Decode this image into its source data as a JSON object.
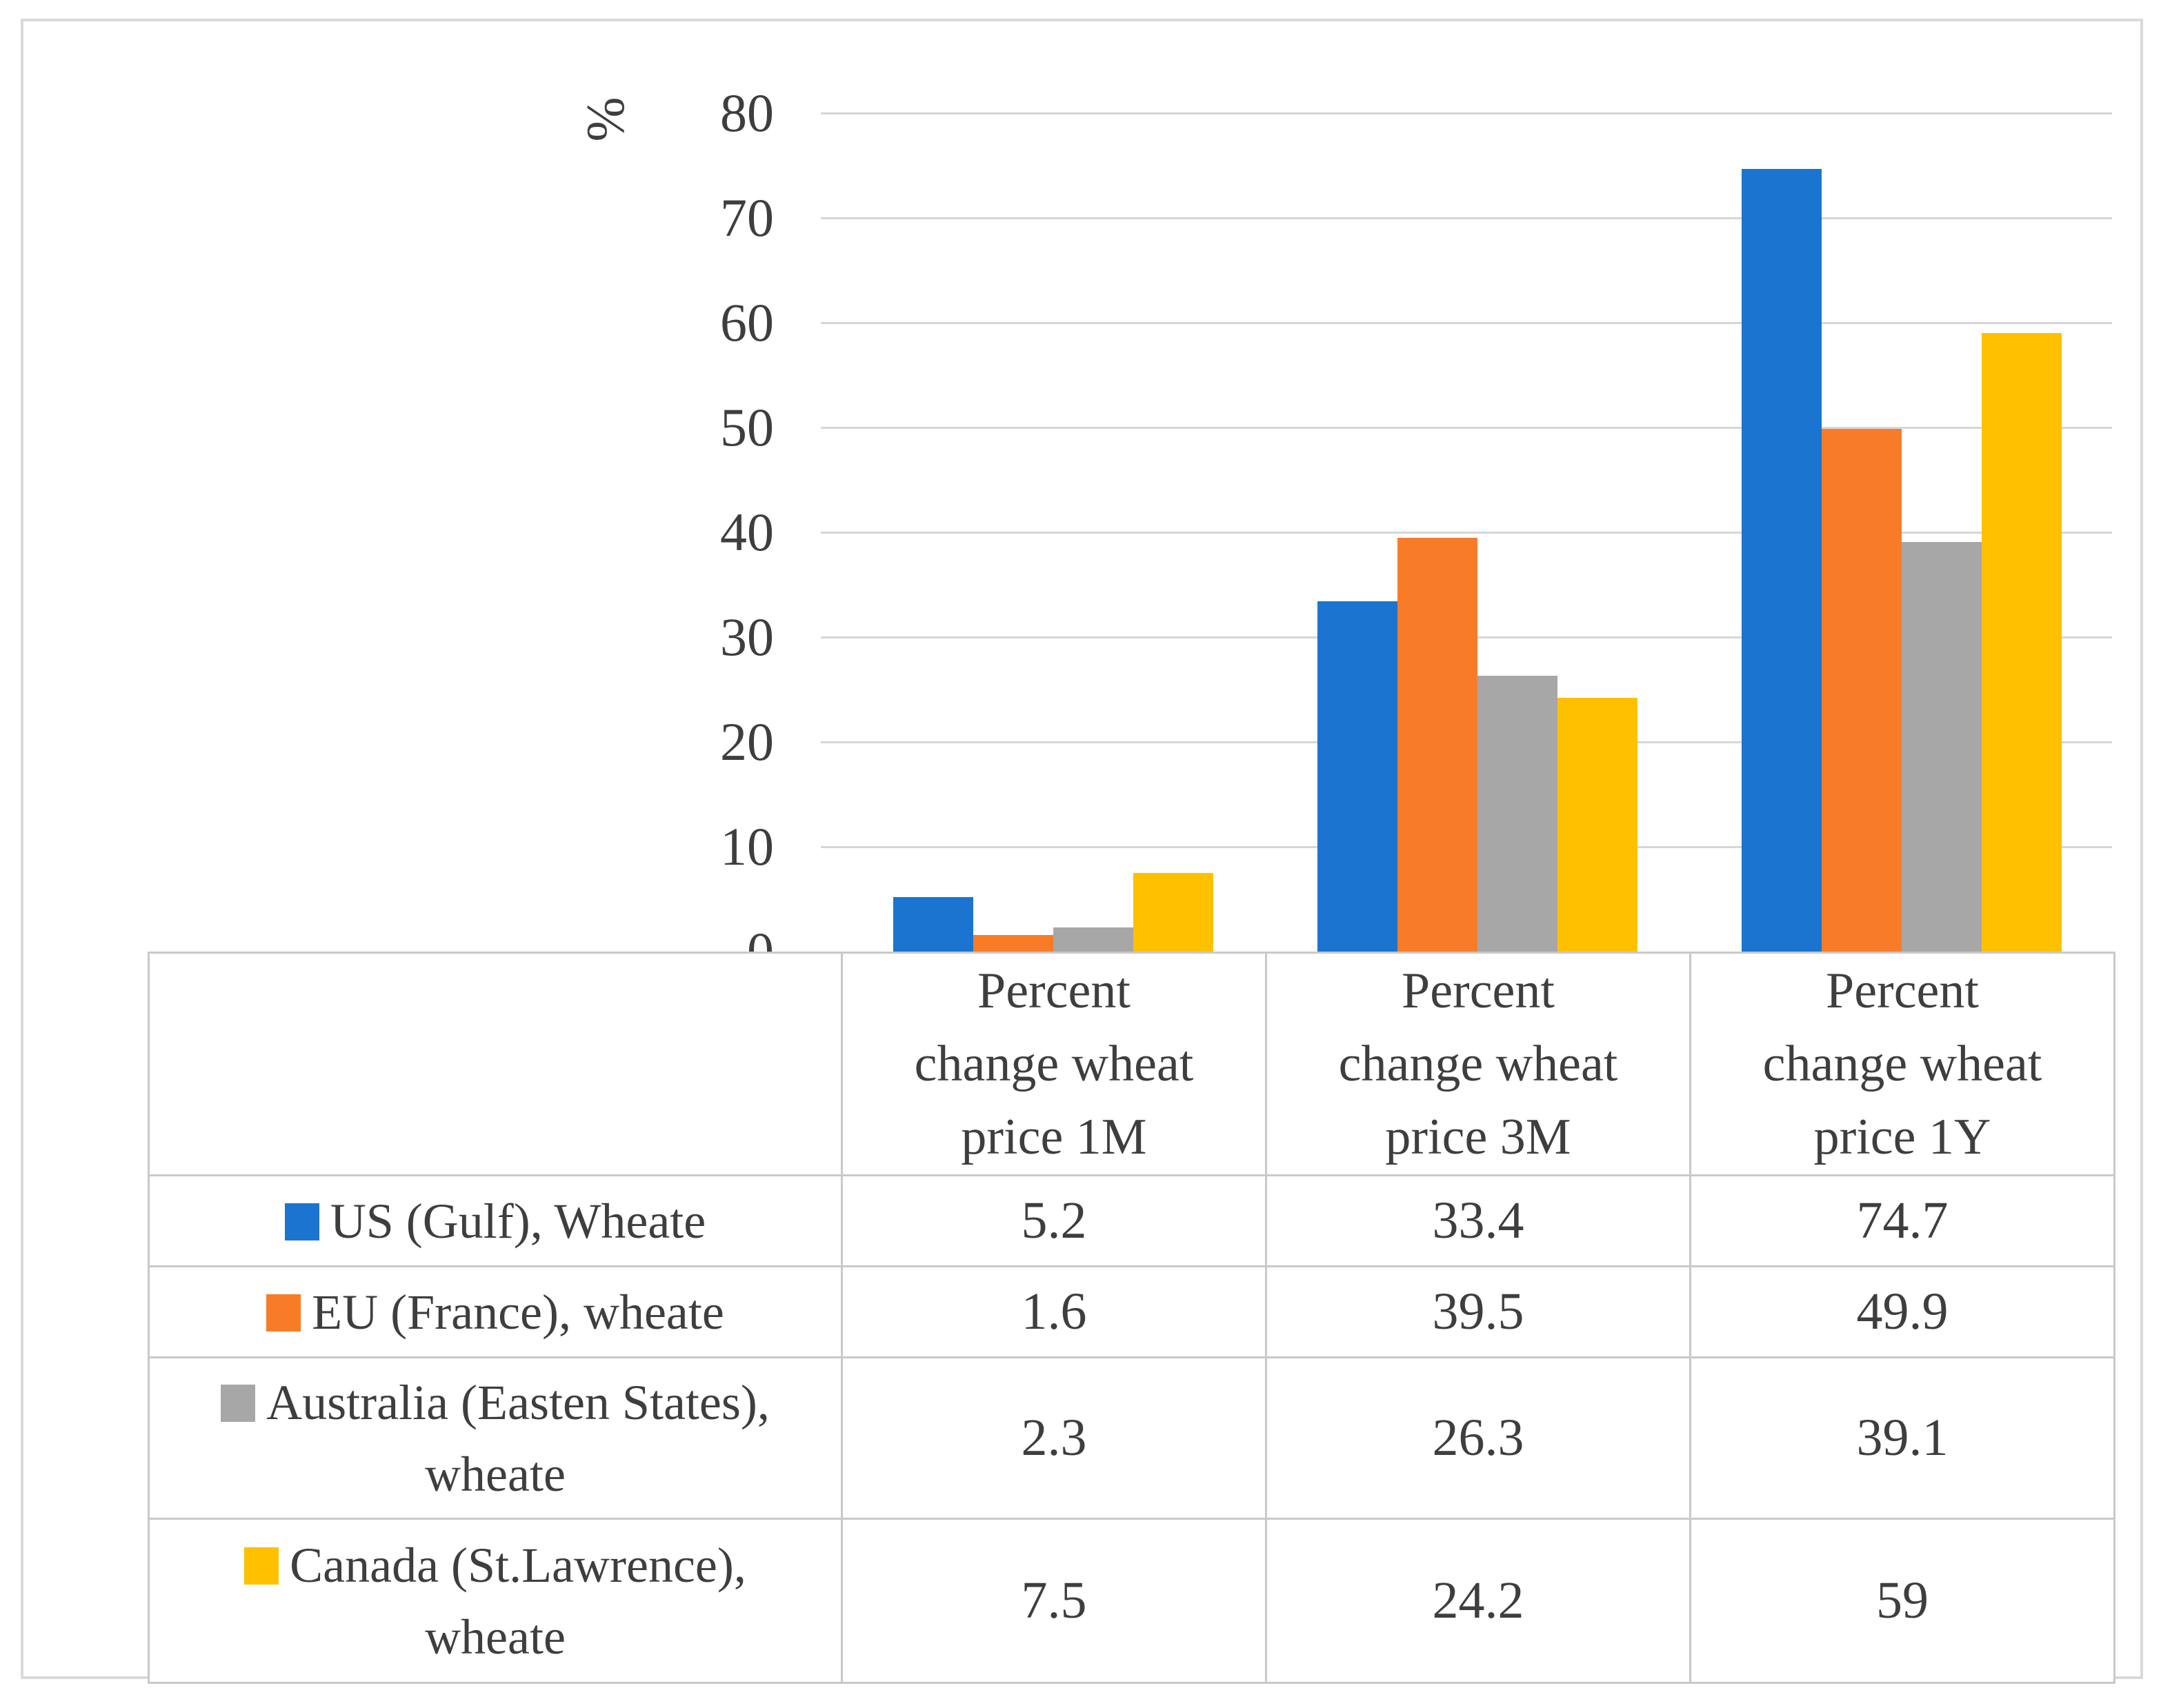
{
  "chart_data": {
    "type": "bar",
    "title": "",
    "ylabel": "%",
    "xlabel": "",
    "ylim": [
      0,
      80
    ],
    "yticks": [
      0,
      10,
      20,
      30,
      40,
      50,
      60,
      70,
      80
    ],
    "grid": true,
    "legend_position": "table-rows-left",
    "categories": [
      "Percent\nchange wheat\nprice 1M",
      "Percent\nchange wheat\nprice 3M",
      "Percent\nchange wheat\nprice 1Y"
    ],
    "series": [
      {
        "name": "US (Gulf), Wheate",
        "color": "#1B74CF",
        "values": [
          5.2,
          33.4,
          74.7
        ]
      },
      {
        "name": "EU (France), wheate",
        "color": "#F87C28",
        "values": [
          1.6,
          39.5,
          49.9
        ]
      },
      {
        "name": "Australia (Easten States),\nwheate",
        "color": "#A7A7A7",
        "values": [
          2.3,
          26.3,
          39.1
        ]
      },
      {
        "name": "Canada (St.Lawrence),\nwheate",
        "color": "#FFC000",
        "values": [
          7.5,
          24.2,
          59
        ]
      }
    ]
  },
  "colors": {
    "gridline": "#D6D6D6",
    "table_border": "#C9C9C9",
    "text": "#3E3E3E",
    "figure_border": "#DADADA"
  }
}
